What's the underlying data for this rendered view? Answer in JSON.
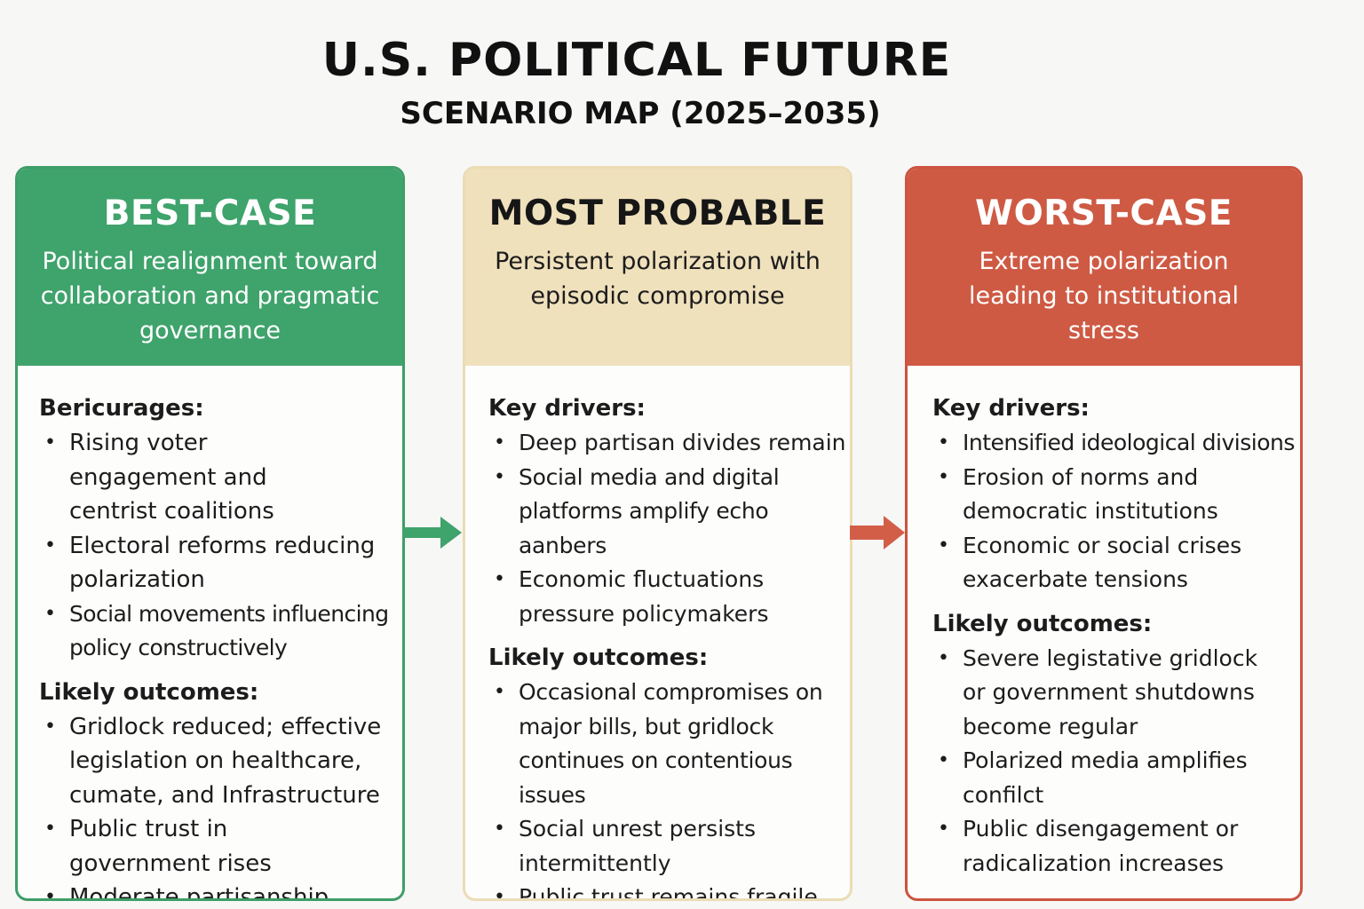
{
  "title": "U.S. POLITICAL FUTURE",
  "subtitle": "SCENARIO MAP (2025–2035)",
  "colors": {
    "best": "#3fa36c",
    "probable": "#f0e1bd",
    "worst": "#ce5a44"
  },
  "scenarios": [
    {
      "heading": "BEST-CASE",
      "summary": "Political realignment toward collaboration and pragmatic governance",
      "drivers_label": "Bericurages:",
      "drivers": [
        "Rising voter engagement and centrist coalitions",
        "Electoral reforms reducing polarization",
        "Social movements influencing policy constructively"
      ],
      "outcomes_label": "Likely outcomes:",
      "outcomes": [
        "Gridlock reduced; effective legislation on healthcare, cumate, and Infrastructure",
        "Public trust in government rises",
        "Moderate partisanship"
      ]
    },
    {
      "heading": "MOST PROBABLE",
      "summary": "Persistent polarization with episodic compromise",
      "drivers_label": "Key drivers:",
      "drivers": [
        "Deep partisan divides remain",
        "Social media and digital platforms amplify echo aanbers",
        "Economic fluctuations pressure policymakers"
      ],
      "outcomes_label": "Likely outcomes:",
      "outcomes": [
        "Occasional compromises on major bills, but gridlock continues on contentious issues",
        "Social unrest persists intermittently",
        "Public trust remains fragile"
      ]
    },
    {
      "heading": "WORST-CASE",
      "summary": "Extreme polarization leading to institutional stress",
      "drivers_label": "Key drivers:",
      "drivers": [
        "Intensified ideological divisions",
        "Erosion of norms and democratic institutions",
        "Economic or social crises exacerbate tensions"
      ],
      "outcomes_label": "Likely outcomes:",
      "outcomes": [
        "Severe legistative gridlock or government shutdowns become regular",
        "Polarized media amplifies confilct",
        "Public disengagement or radicalization increases"
      ]
    }
  ]
}
